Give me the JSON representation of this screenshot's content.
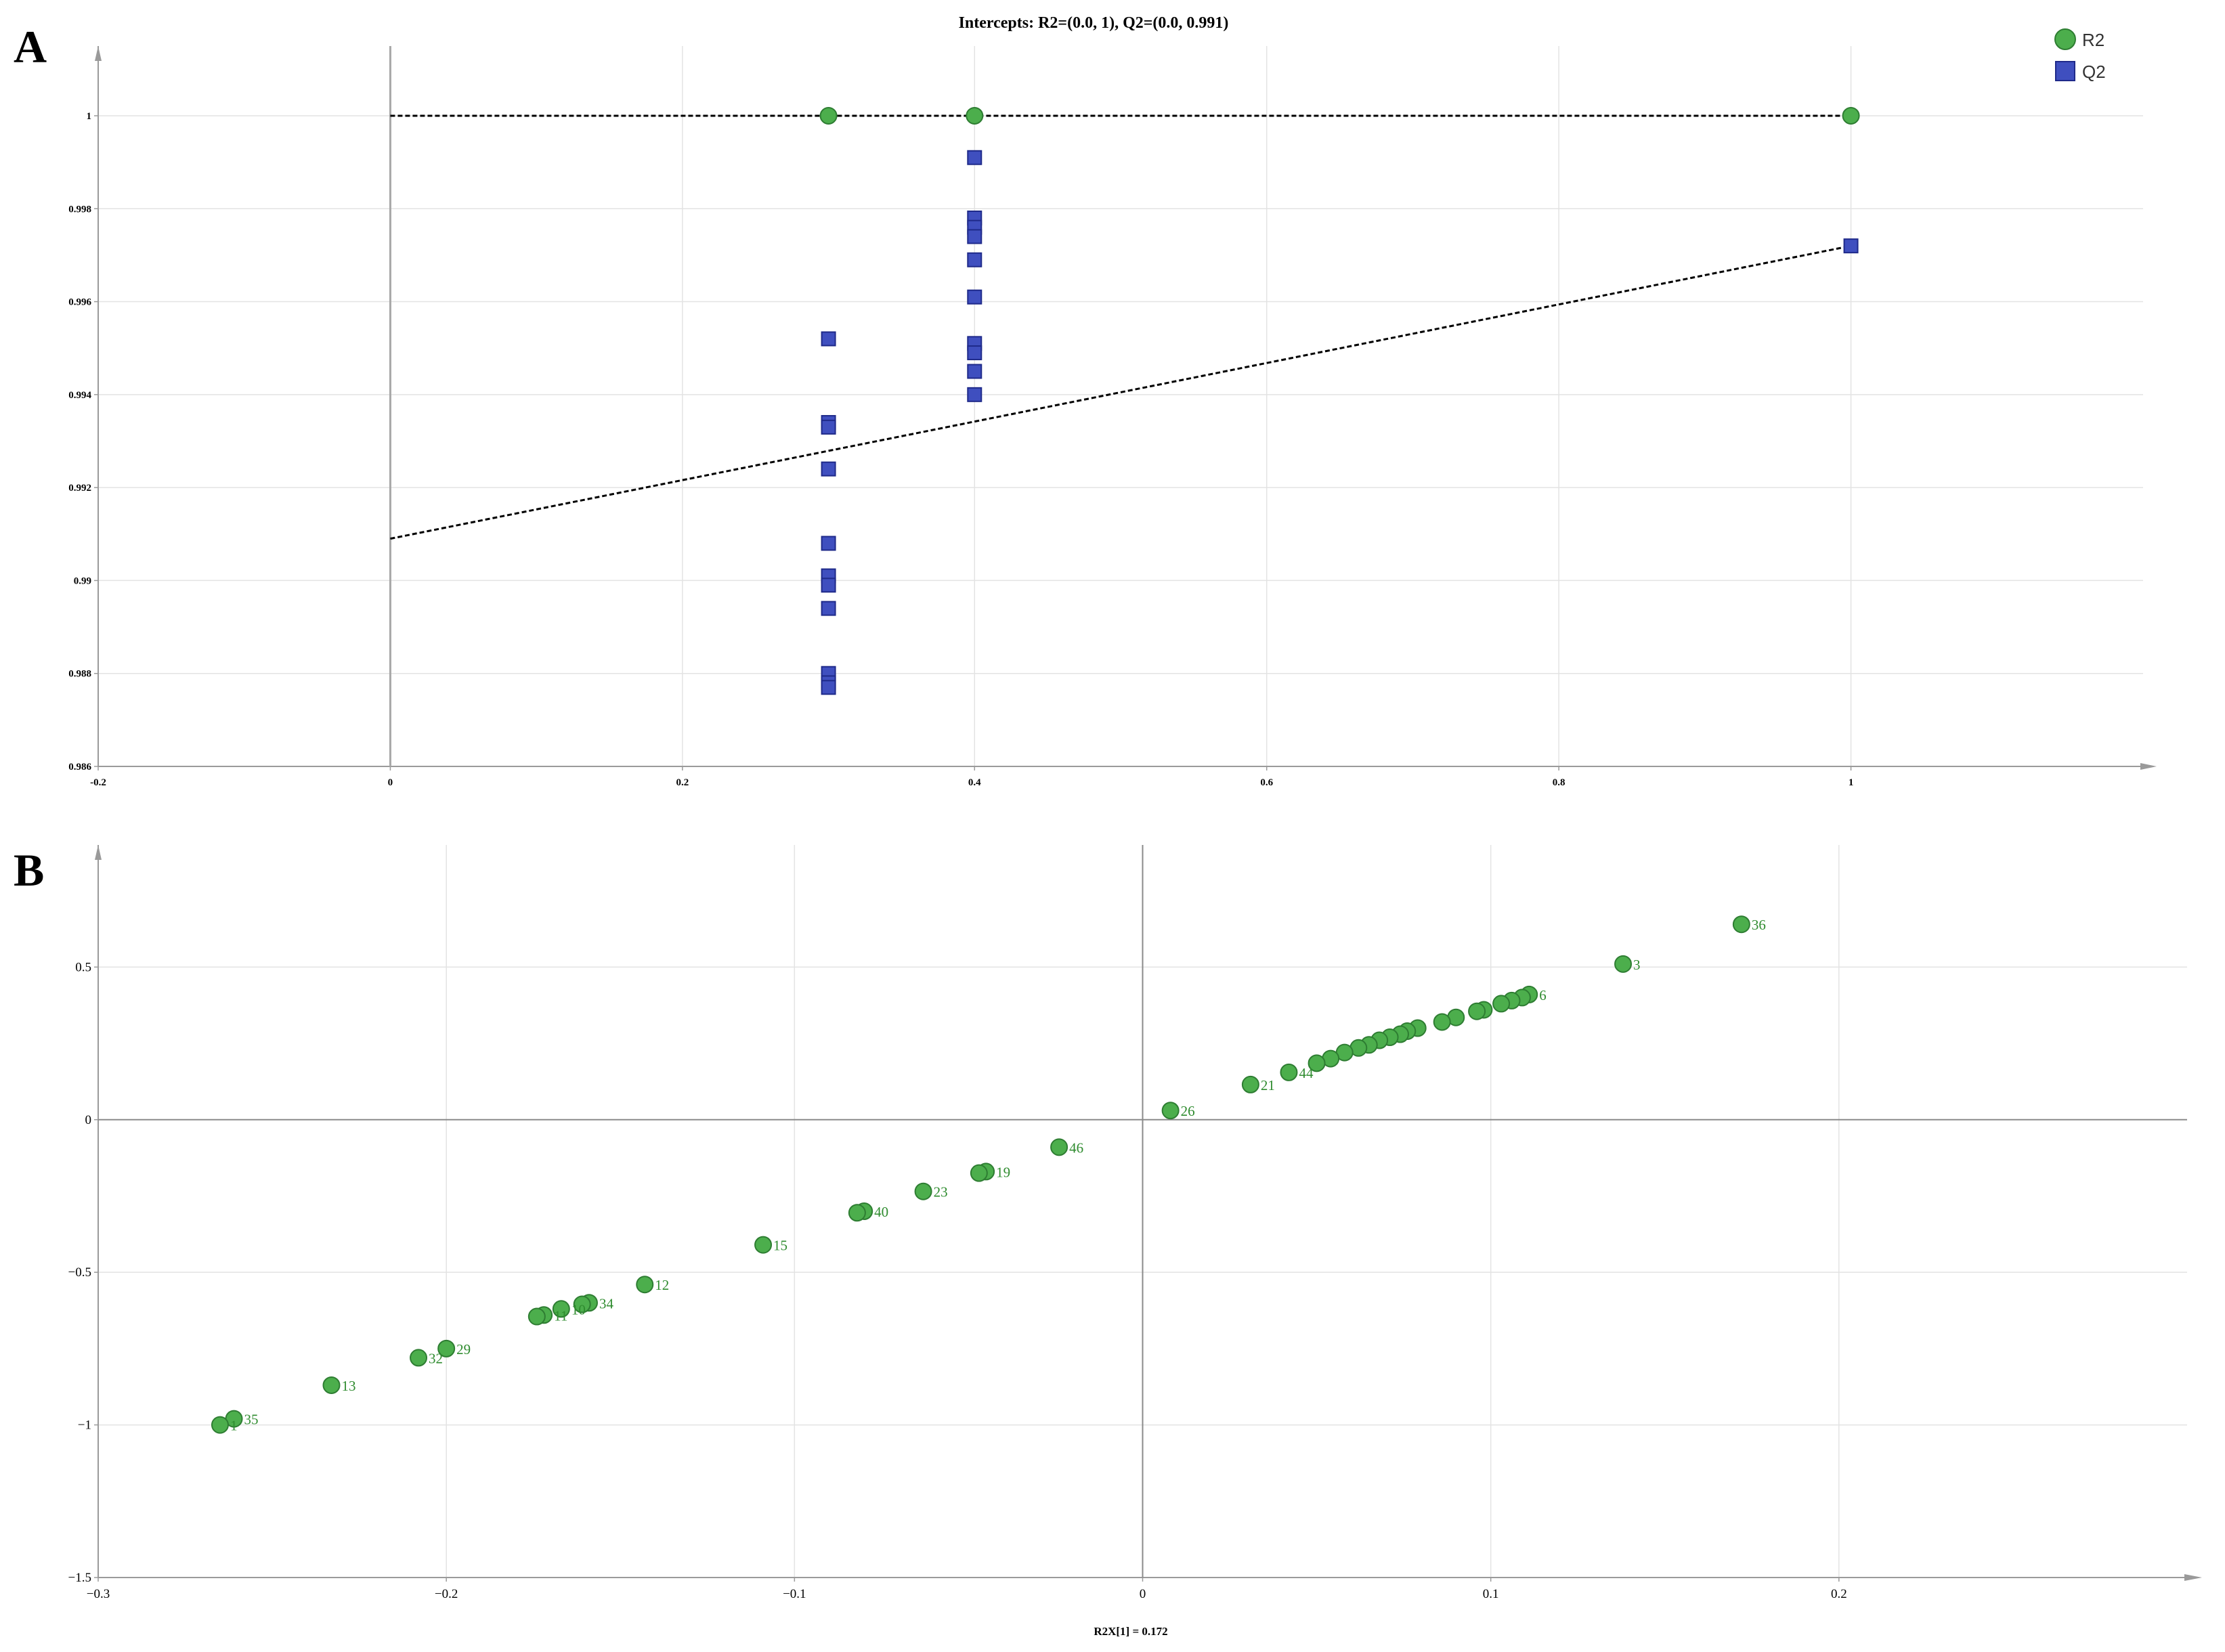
{
  "colors": {
    "r2": "#4cae4c",
    "r2_stroke": "#2e7d32",
    "q2": "#3f4fbf",
    "q2_stroke": "#1f2a8a",
    "axis": "#9a9a9a",
    "label": "#2e8b2e"
  },
  "chart_data": [
    {
      "panel": "A",
      "type": "scatter",
      "title": "Intercepts: R2=(0.0, 1), Q2=(0.0, 0.991)",
      "xlabel": "",
      "ylabel": "",
      "xlim": [
        -0.2,
        1.2
      ],
      "ylim": [
        0.986,
        1.0015
      ],
      "grid": true,
      "legend": "top-right",
      "x_ticks": [
        -0.2,
        0,
        0.2,
        0.4,
        0.6,
        0.8,
        1
      ],
      "x_tick_labels": [
        "-0.2",
        "0",
        "0.2",
        "0.4",
        "0.6",
        "0.8",
        "1"
      ],
      "y_ticks": [
        0.986,
        0.988,
        0.99,
        0.992,
        0.994,
        0.996,
        0.998,
        1
      ],
      "y_tick_labels": [
        "0.986",
        "0.988",
        "0.99",
        "0.992",
        "0.994",
        "0.996",
        "0.998",
        "1"
      ],
      "series": [
        {
          "name": "R2",
          "marker": "circle",
          "points": [
            [
              0.3,
              1.0
            ],
            [
              0.4,
              1.0
            ],
            [
              1.0,
              1.0
            ]
          ],
          "regression": [
            [
              0,
              1.0
            ],
            [
              1.0,
              1.0
            ]
          ]
        },
        {
          "name": "Q2",
          "marker": "square",
          "points": [
            [
              0.3,
              0.9952
            ],
            [
              0.3,
              0.9934
            ],
            [
              0.3,
              0.9933
            ],
            [
              0.3,
              0.9924
            ],
            [
              0.3,
              0.9908
            ],
            [
              0.3,
              0.9901
            ],
            [
              0.3,
              0.9899
            ],
            [
              0.3,
              0.9894
            ],
            [
              0.3,
              0.988
            ],
            [
              0.3,
              0.9878
            ],
            [
              0.3,
              0.9877
            ],
            [
              0.4,
              0.9991
            ],
            [
              0.4,
              0.9978
            ],
            [
              0.4,
              0.9976
            ],
            [
              0.4,
              0.9974
            ],
            [
              0.4,
              0.9969
            ],
            [
              0.4,
              0.9961
            ],
            [
              0.4,
              0.9951
            ],
            [
              0.4,
              0.9949
            ],
            [
              0.4,
              0.9945
            ],
            [
              0.4,
              0.994
            ],
            [
              1.0,
              0.9972
            ]
          ],
          "regression": [
            [
              0,
              0.9909
            ],
            [
              1.0,
              0.9972
            ]
          ]
        }
      ]
    },
    {
      "panel": "B",
      "type": "scatter",
      "title": "",
      "xlabel": "R2X[1] = 0.172",
      "ylabel": "",
      "xlim": [
        -0.3,
        0.3
      ],
      "ylim": [
        -1.5,
        0.9
      ],
      "grid": true,
      "x_ticks": [
        -0.3,
        -0.2,
        -0.1,
        0,
        0.1,
        0.2
      ],
      "x_tick_labels": [
        "−0.3",
        "−0.2",
        "−0.1",
        "0",
        "0.1",
        "0.2"
      ],
      "y_ticks": [
        -1.5,
        -1,
        -0.5,
        0,
        0.5
      ],
      "y_tick_labels": [
        "−1.5",
        "−1",
        "−0.5",
        "0",
        "0.5"
      ],
      "points": [
        {
          "x": 0.172,
          "y": 0.64,
          "label": "36"
        },
        {
          "x": 0.138,
          "y": 0.51,
          "label": "3"
        },
        {
          "x": 0.111,
          "y": 0.41,
          "label": "6"
        },
        {
          "x": 0.109,
          "y": 0.4,
          "label": ""
        },
        {
          "x": 0.106,
          "y": 0.39,
          "label": ""
        },
        {
          "x": 0.103,
          "y": 0.38,
          "label": ""
        },
        {
          "x": 0.098,
          "y": 0.36,
          "label": ""
        },
        {
          "x": 0.096,
          "y": 0.355,
          "label": ""
        },
        {
          "x": 0.09,
          "y": 0.335,
          "label": ""
        },
        {
          "x": 0.086,
          "y": 0.32,
          "label": ""
        },
        {
          "x": 0.079,
          "y": 0.3,
          "label": ""
        },
        {
          "x": 0.076,
          "y": 0.29,
          "label": ""
        },
        {
          "x": 0.074,
          "y": 0.28,
          "label": ""
        },
        {
          "x": 0.071,
          "y": 0.27,
          "label": ""
        },
        {
          "x": 0.068,
          "y": 0.26,
          "label": ""
        },
        {
          "x": 0.065,
          "y": 0.245,
          "label": ""
        },
        {
          "x": 0.062,
          "y": 0.235,
          "label": ""
        },
        {
          "x": 0.058,
          "y": 0.22,
          "label": ""
        },
        {
          "x": 0.054,
          "y": 0.2,
          "label": ""
        },
        {
          "x": 0.05,
          "y": 0.185,
          "label": ""
        },
        {
          "x": 0.042,
          "y": 0.155,
          "label": "44"
        },
        {
          "x": 0.031,
          "y": 0.115,
          "label": "21"
        },
        {
          "x": 0.008,
          "y": 0.03,
          "label": "26"
        },
        {
          "x": -0.024,
          "y": -0.09,
          "label": "46"
        },
        {
          "x": -0.045,
          "y": -0.17,
          "label": "19"
        },
        {
          "x": -0.047,
          "y": -0.175,
          "label": ""
        },
        {
          "x": -0.063,
          "y": -0.235,
          "label": "23"
        },
        {
          "x": -0.08,
          "y": -0.3,
          "label": "40"
        },
        {
          "x": -0.082,
          "y": -0.305,
          "label": ""
        },
        {
          "x": -0.109,
          "y": -0.41,
          "label": "15"
        },
        {
          "x": -0.143,
          "y": -0.54,
          "label": "12"
        },
        {
          "x": -0.159,
          "y": -0.6,
          "label": "34"
        },
        {
          "x": -0.161,
          "y": -0.605,
          "label": ""
        },
        {
          "x": -0.167,
          "y": -0.62,
          "label": "10"
        },
        {
          "x": -0.172,
          "y": -0.64,
          "label": "11"
        },
        {
          "x": -0.174,
          "y": -0.645,
          "label": ""
        },
        {
          "x": -0.2,
          "y": -0.75,
          "label": "29"
        },
        {
          "x": -0.208,
          "y": -0.78,
          "label": "32"
        },
        {
          "x": -0.233,
          "y": -0.87,
          "label": "13"
        },
        {
          "x": -0.261,
          "y": -0.98,
          "label": "35"
        },
        {
          "x": -0.265,
          "y": -1.0,
          "label": "1"
        }
      ]
    }
  ]
}
